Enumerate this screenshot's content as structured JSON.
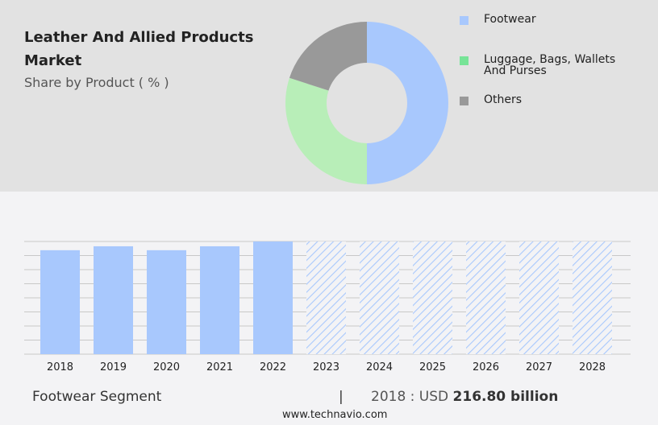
{
  "header": {
    "title": "Leather And Allied Products Market",
    "subtitle": "Share by Product ( % )"
  },
  "chart_data": [
    {
      "type": "pie",
      "style": "donut",
      "title": "Leather And Allied Products Market",
      "subtitle": "Share by Product ( % )",
      "legend_position": "right",
      "slices": [
        {
          "name": "Footwear",
          "value": 50,
          "color": "#a8c8fd"
        },
        {
          "name": "Luggage, Bags, Wallets And Purses",
          "value": 30,
          "color": "#b8eeb8",
          "legend_color": "#77e497"
        },
        {
          "name": "Others",
          "value": 20,
          "color": "#999999"
        }
      ]
    },
    {
      "type": "bar",
      "categories": [
        "2018",
        "2019",
        "2020",
        "2021",
        "2022",
        "2023",
        "2024",
        "2025",
        "2026",
        "2027",
        "2028"
      ],
      "values": [
        216.8,
        225,
        216.8,
        225,
        235,
        235,
        235,
        235,
        235,
        235,
        235
      ],
      "forecast_from": "2023",
      "forecast_style": "hatched",
      "ylim": [
        0,
        235
      ],
      "grid": true,
      "bar_color": "#a8c8fd",
      "xlabel": "",
      "ylabel": ""
    }
  ],
  "footer": {
    "segment": "Footwear Segment",
    "separator": "|",
    "value_prefix": "2018 : USD",
    "value": "216.80 billion",
    "source": "www.technavio.com"
  }
}
